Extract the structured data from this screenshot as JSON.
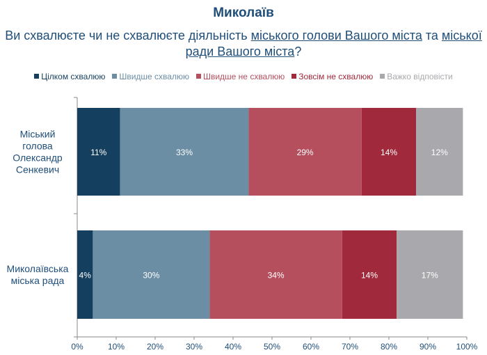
{
  "header": {
    "title": "Миколаїв",
    "question_part1": "Ви схвалюєте чи не схвалюєте діяльність ",
    "question_link1": "міського голови Вашого міста",
    "question_part2": " та ",
    "question_link2": "міської ради Вашого міста",
    "question_part3": "?"
  },
  "chart_data": {
    "type": "bar",
    "orientation": "horizontal",
    "stacked": true,
    "categories": [
      [
        "Міський",
        "голова",
        "Олександр",
        "Сенкевич"
      ],
      [
        "Миколаївська",
        "міська рада"
      ]
    ],
    "series": [
      {
        "name": "Цілком схвалюю",
        "color": "#153f5e",
        "label_color": "#ffffff",
        "values": [
          11,
          4
        ]
      },
      {
        "name": "Швидше схвалюю",
        "color": "#6c8ea4",
        "label_color": "#ffffff",
        "values": [
          33,
          30
        ]
      },
      {
        "name": "Швидше не схвалюю",
        "color": "#b54f5e",
        "label_color": "#ffffff",
        "values": [
          29,
          34
        ]
      },
      {
        "name": "Зовсім не схвалюю",
        "color": "#a02a3c",
        "label_color": "#ffffff",
        "values": [
          14,
          14
        ]
      },
      {
        "name": "Важко відповісти",
        "color": "#a9a8ad",
        "label_color": "#ffffff",
        "values": [
          12,
          17
        ]
      }
    ],
    "legend_text_colors": [
      "#153f5e",
      "#6c8ea4",
      "#b54f5e",
      "#a02a3c",
      "#a9a8ad"
    ],
    "xlim": [
      0,
      100
    ],
    "xticks": [
      "0%",
      "10%",
      "20%",
      "30%",
      "40%",
      "50%",
      "60%",
      "70%",
      "80%",
      "90%",
      "100%"
    ],
    "value_suffix": "%",
    "legend_position": "top",
    "grid": false
  }
}
